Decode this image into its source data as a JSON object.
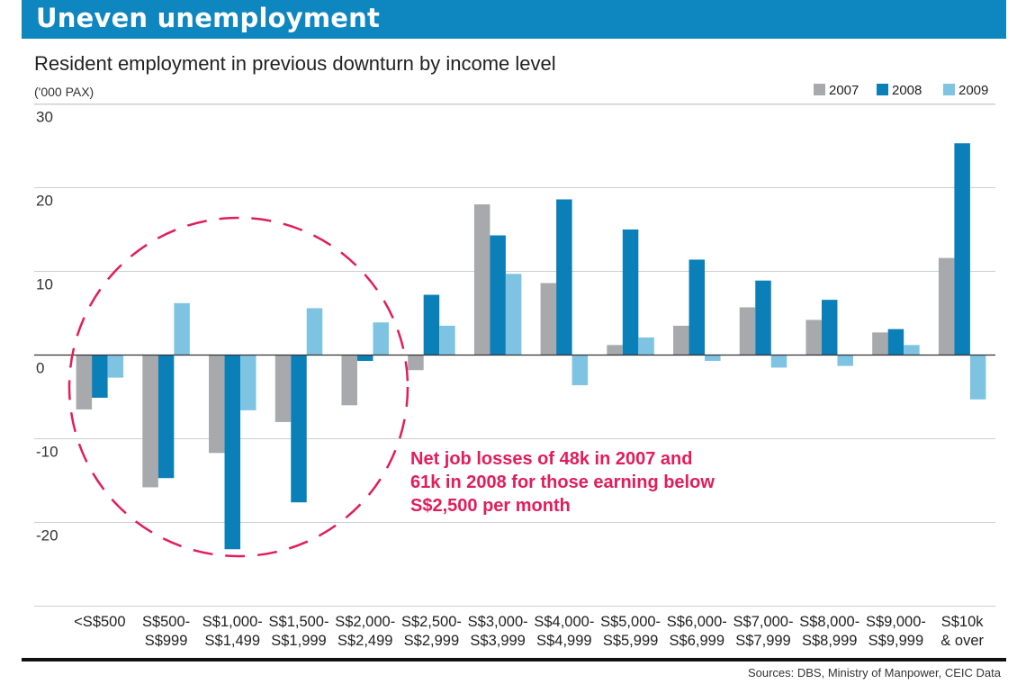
{
  "header": {
    "title": "Uneven unemployment"
  },
  "chart_data": {
    "type": "bar",
    "title": "Resident employment in previous downturn by income level",
    "ylabel": "('000 PAX)",
    "ylim": [
      -30,
      30
    ],
    "yticks": [
      30,
      20,
      10,
      0,
      -10,
      -20
    ],
    "grid": true,
    "legend_position": "top-right",
    "categories": [
      [
        "<S$500",
        ""
      ],
      [
        "S$500-",
        "S$999"
      ],
      [
        "S$1,000-",
        "S$1,499"
      ],
      [
        "S$1,500-",
        "S$1,999"
      ],
      [
        "S$2,000-",
        "S$2,499"
      ],
      [
        "S$2,500-",
        "S$2,999"
      ],
      [
        "S$3,000-",
        "S$3,999"
      ],
      [
        "S$4,000-",
        "S$4,999"
      ],
      [
        "S$5,000-",
        "S$5,999"
      ],
      [
        "S$6,000-",
        "S$6,999"
      ],
      [
        "S$7,000-",
        "S$7,999"
      ],
      [
        "S$8,000-",
        "S$8,999"
      ],
      [
        "S$9,000-",
        "S$9,999"
      ],
      [
        "S$10k",
        "& over"
      ]
    ],
    "series": [
      {
        "name": "2007",
        "color": "#a7a9ac",
        "values": [
          -6.5,
          -15.8,
          -11.7,
          -8.0,
          -6.0,
          -1.8,
          18.0,
          8.6,
          1.2,
          3.5,
          5.7,
          4.2,
          2.7,
          11.6
        ]
      },
      {
        "name": "2008",
        "color": "#0b7fb8",
        "values": [
          -5.1,
          -14.7,
          -23.2,
          -17.6,
          -0.7,
          7.2,
          14.3,
          18.6,
          15.0,
          11.4,
          8.9,
          6.6,
          3.1,
          25.3
        ]
      },
      {
        "name": "2009",
        "color": "#7ec4e2",
        "values": [
          -2.7,
          6.2,
          -6.6,
          5.6,
          3.9,
          3.5,
          9.7,
          -3.6,
          2.1,
          -0.7,
          -1.5,
          -1.3,
          1.2,
          -5.3
        ]
      }
    ],
    "annotation": [
      "Net job losses of 48k in 2007 and",
      "61k in 2008 for those earning below",
      "S$2,500 per month"
    ]
  },
  "footer": {
    "source": "Sources: DBS, Ministry of Manpower, CEIC Data"
  }
}
